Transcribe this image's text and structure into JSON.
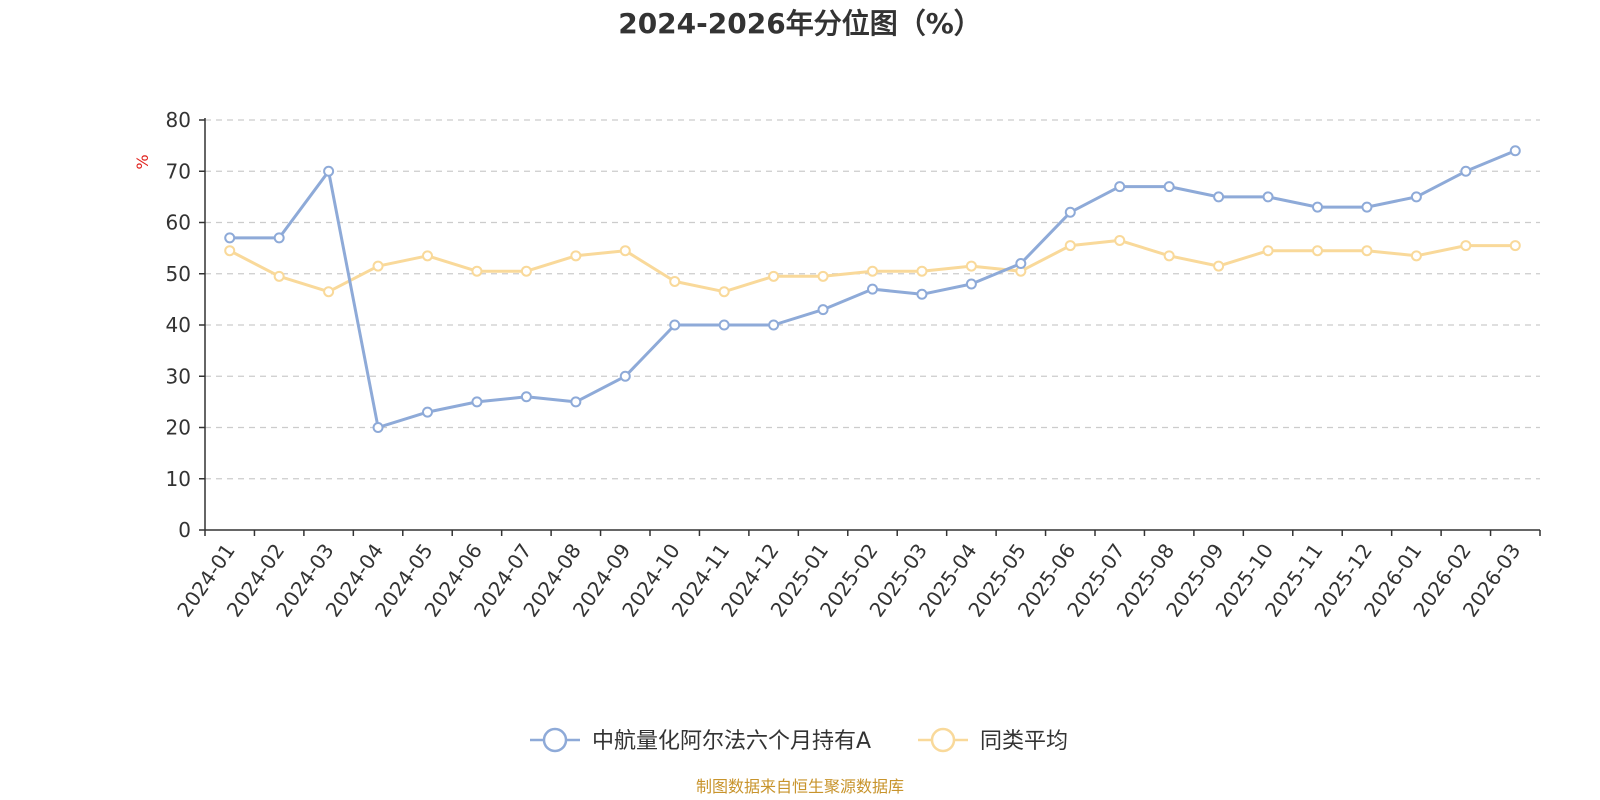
{
  "chart_data": {
    "type": "line",
    "title": "2024-2026年分位图（%）",
    "ylabel": "%",
    "ylim": [
      0,
      80
    ],
    "yticks": [
      0,
      10,
      20,
      30,
      40,
      50,
      60,
      70,
      80
    ],
    "grid": true,
    "legend_position": "bottom-center",
    "categories": [
      "2024-01",
      "2024-02",
      "2024-03",
      "2024-04",
      "2024-05",
      "2024-06",
      "2024-07",
      "2024-08",
      "2024-09",
      "2024-10",
      "2024-11",
      "2024-12",
      "2025-01",
      "2025-02",
      "2025-03",
      "2025-04",
      "2025-05",
      "2025-06",
      "2025-07",
      "2025-08",
      "2025-09",
      "2025-10",
      "2025-11",
      "2025-12",
      "2026-01",
      "2026-02",
      "2026-03"
    ],
    "series": [
      {
        "name": "中航量化阿尔法六个月持有A",
        "color": "#8eaad8",
        "values": [
          57,
          57,
          70,
          20,
          23,
          25,
          26,
          25,
          30,
          40,
          40,
          40,
          43,
          47,
          46,
          48,
          52,
          62,
          67,
          67,
          65,
          65,
          63,
          63,
          65,
          70,
          74
        ]
      },
      {
        "name": "同类平均",
        "color": "#f9d99a",
        "values": [
          54.5,
          49.5,
          46.5,
          51.5,
          53.5,
          50.5,
          50.5,
          53.5,
          54.5,
          48.5,
          46.5,
          49.5,
          49.5,
          50.5,
          50.5,
          51.5,
          50.5,
          55.5,
          56.5,
          53.5,
          51.5,
          54.5,
          54.5,
          54.5,
          53.5,
          55.5,
          55.5
        ]
      }
    ]
  },
  "source_note": "制图数据来自恒生聚源数据库"
}
